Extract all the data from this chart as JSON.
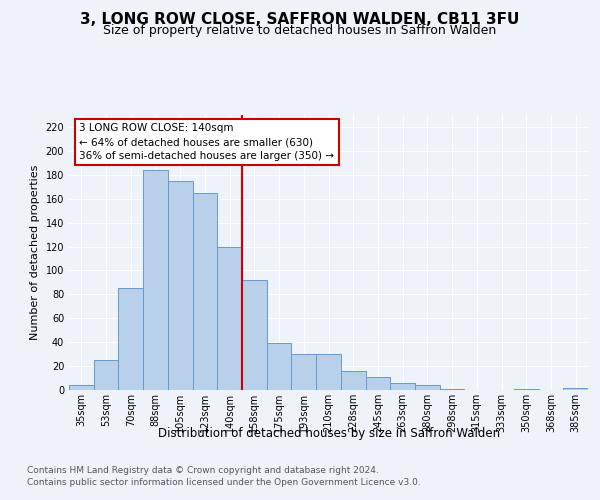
{
  "title": "3, LONG ROW CLOSE, SAFFRON WALDEN, CB11 3FU",
  "subtitle": "Size of property relative to detached houses in Saffron Walden",
  "xlabel": "Distribution of detached houses by size in Saffron Walden",
  "ylabel": "Number of detached properties",
  "categories": [
    "35sqm",
    "53sqm",
    "70sqm",
    "88sqm",
    "105sqm",
    "123sqm",
    "140sqm",
    "158sqm",
    "175sqm",
    "193sqm",
    "210sqm",
    "228sqm",
    "245sqm",
    "263sqm",
    "280sqm",
    "298sqm",
    "315sqm",
    "333sqm",
    "350sqm",
    "368sqm",
    "385sqm"
  ],
  "values": [
    4,
    25,
    85,
    184,
    175,
    165,
    120,
    92,
    39,
    30,
    30,
    16,
    11,
    6,
    4,
    1,
    0,
    0,
    1,
    0,
    2
  ],
  "bar_color": "#b8d0ea",
  "bar_edge_color": "#6699cc",
  "vline_x": 6.5,
  "vline_color": "#cc0000",
  "annotation_text": "3 LONG ROW CLOSE: 140sqm\n← 64% of detached houses are smaller (630)\n36% of semi-detached houses are larger (350) →",
  "annotation_box_facecolor": "#ffffff",
  "annotation_box_edgecolor": "#cc0000",
  "ylim": [
    0,
    230
  ],
  "yticks": [
    0,
    20,
    40,
    60,
    80,
    100,
    120,
    140,
    160,
    180,
    200,
    220
  ],
  "footer_line1": "Contains HM Land Registry data © Crown copyright and database right 2024.",
  "footer_line2": "Contains public sector information licensed under the Open Government Licence v3.0.",
  "bg_color": "#eef2f9",
  "grid_color": "#ffffff",
  "title_color": "#000000",
  "footer_color": "#555555"
}
